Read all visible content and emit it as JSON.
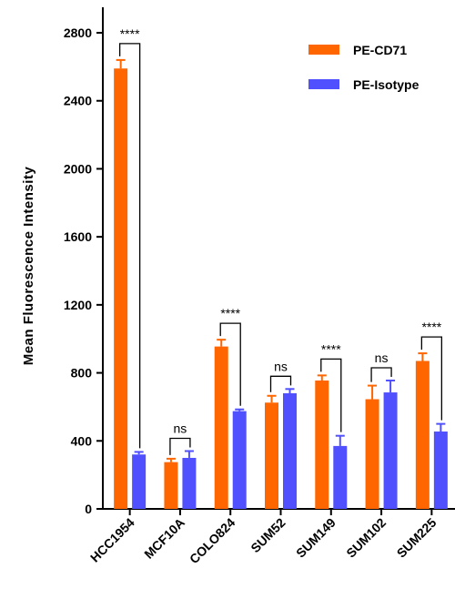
{
  "chart_data": {
    "type": "bar",
    "ylabel": "Mean Fluorescence Intensity",
    "xlabel": "",
    "ylim": [
      0,
      2950
    ],
    "yticks": [
      0,
      400,
      800,
      1200,
      1600,
      2000,
      2400,
      2800
    ],
    "categories": [
      "HCC1954",
      "MCF10A",
      "COLO824",
      "SUM52",
      "SUM149",
      "SUM102",
      "SUM225"
    ],
    "series": [
      {
        "name": "PE-CD71",
        "color": "#ff6600",
        "values": [
          2590,
          275,
          955,
          625,
          755,
          645,
          870
        ],
        "errors": [
          50,
          20,
          40,
          40,
          30,
          80,
          45
        ]
      },
      {
        "name": "PE-Isotype",
        "color": "#5050ff",
        "values": [
          320,
          300,
          575,
          680,
          370,
          685,
          455
        ],
        "errors": [
          15,
          40,
          10,
          25,
          60,
          70,
          45
        ]
      }
    ],
    "legend": "top-right",
    "grid": false,
    "significance": [
      "****",
      "ns",
      "****",
      "ns",
      "****",
      "ns",
      "****"
    ]
  }
}
